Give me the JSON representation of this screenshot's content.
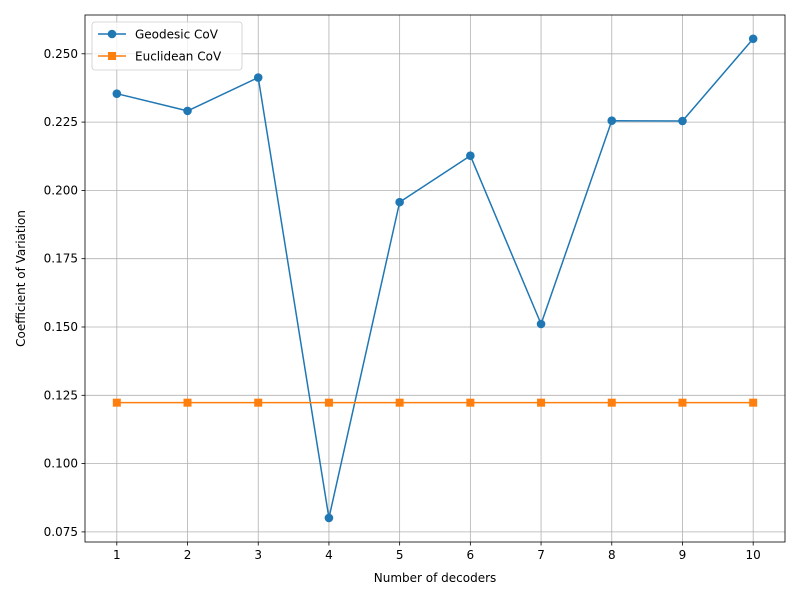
{
  "chart_data": {
    "type": "line",
    "title": "",
    "xlabel": "Number of decoders",
    "ylabel": "Coefficient of Variation",
    "x": [
      1,
      2,
      3,
      4,
      5,
      6,
      7,
      8,
      9,
      10
    ],
    "x_ticks": [
      "1",
      "2",
      "3",
      "4",
      "5",
      "6",
      "7",
      "8",
      "9",
      "10"
    ],
    "xlim": [
      0.55,
      10.45
    ],
    "ylim": [
      0.0713,
      0.2642
    ],
    "y_ticks": [
      0.075,
      0.1,
      0.125,
      0.15,
      0.175,
      0.2,
      0.225,
      0.25
    ],
    "y_tick_labels": [
      "0.075",
      "0.100",
      "0.125",
      "0.150",
      "0.175",
      "0.200",
      "0.225",
      "0.250"
    ],
    "grid": true,
    "legend_position": "top-left",
    "series": [
      {
        "name": "Geodesic CoV",
        "color": "#1f77b4",
        "marker": "circle",
        "values": [
          0.2354,
          0.2291,
          0.2413,
          0.0801,
          0.1957,
          0.2127,
          0.1511,
          0.2255,
          0.2254,
          0.2555
        ]
      },
      {
        "name": "Euclidean CoV",
        "color": "#ff7f0e",
        "marker": "square",
        "values": [
          0.1223,
          0.1223,
          0.1223,
          0.1223,
          0.1223,
          0.1223,
          0.1223,
          0.1223,
          0.1223,
          0.1223
        ]
      }
    ]
  }
}
